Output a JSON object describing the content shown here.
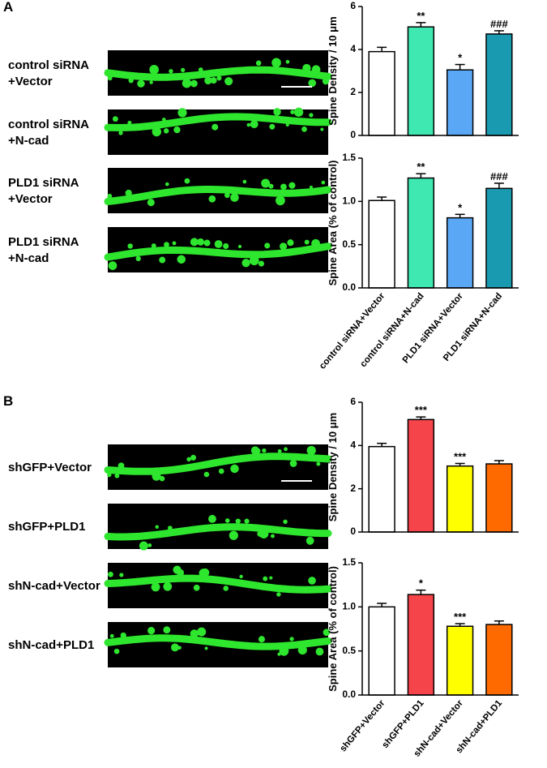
{
  "panels": [
    {
      "label": "A",
      "image_labels": [
        [
          "control siRNA",
          "+Vector"
        ],
        [
          "control siRNA",
          "+N-cad"
        ],
        [
          "PLD1 siRNA",
          "+Vector"
        ],
        [
          "PLD1 siRNA",
          "+N-cad"
        ]
      ]
    },
    {
      "label": "B",
      "image_labels": [
        [
          "shGFP+Vector"
        ],
        [
          "shGFP+PLD1"
        ],
        [
          "shN-cad+Vector"
        ],
        [
          "shN-cad+PLD1"
        ]
      ]
    }
  ],
  "chart_data": [
    {
      "type": "bar",
      "y_label": "Spine Density / 10 μm",
      "values": [
        3.9,
        5.05,
        3.05,
        4.72
      ],
      "errors": [
        0.2,
        0.2,
        0.25,
        0.15
      ],
      "annotations": [
        null,
        "**",
        "*",
        "###"
      ],
      "colors": [
        "#ffffff",
        "#3ee8b0",
        "#5aa8f5",
        "#1a9ab0"
      ],
      "ylim": [
        0,
        6
      ],
      "yticks": [
        0,
        2,
        4,
        6
      ]
    },
    {
      "type": "bar",
      "y_label": "Spine Area (% of control)",
      "categories": [
        "control siRNA+Vector",
        "control siRNA+N-cad",
        "PLD1 siRNA+Vector",
        "PLD1 siRNA+N-cad"
      ],
      "values": [
        1.01,
        1.27,
        0.81,
        1.15
      ],
      "errors": [
        0.04,
        0.05,
        0.04,
        0.06
      ],
      "annotations": [
        null,
        "**",
        "*",
        "###"
      ],
      "colors": [
        "#ffffff",
        "#3ee8b0",
        "#5aa8f5",
        "#1a9ab0"
      ],
      "ylim": [
        0,
        1.5
      ],
      "yticks": [
        {
          "value": 0,
          "label": "0.0"
        },
        0.5,
        {
          "value": 1,
          "label": "1.0"
        },
        1.5
      ]
    },
    {
      "type": "bar",
      "y_label": "Spine Density / 10 μm",
      "values": [
        3.95,
        5.2,
        3.05,
        3.15
      ],
      "errors": [
        0.15,
        0.12,
        0.12,
        0.15
      ],
      "annotations": [
        null,
        "***",
        "***",
        null
      ],
      "colors": [
        "#ffffff",
        "#f5444a",
        "#ffff00",
        "#ff6a00"
      ],
      "ylim": [
        0,
        6
      ],
      "yticks": [
        0,
        2,
        4,
        6
      ]
    },
    {
      "type": "bar",
      "y_label": "Spine Area (% of control)",
      "categories": [
        "shGFP+Vector",
        "shGFP+PLD1",
        "shN-cad+Vector",
        "shN-cad+PLD1"
      ],
      "values": [
        1.0,
        1.14,
        0.78,
        0.8
      ],
      "errors": [
        0.04,
        0.05,
        0.03,
        0.04
      ],
      "annotations": [
        null,
        "*",
        "***",
        null
      ],
      "colors": [
        "#ffffff",
        "#f5444a",
        "#ffff00",
        "#ff6a00"
      ],
      "ylim": [
        0,
        1.5
      ],
      "yticks": [
        {
          "value": 0,
          "label": "0.0"
        },
        0.5,
        {
          "value": 1,
          "label": "1.0"
        },
        1.5
      ]
    }
  ]
}
